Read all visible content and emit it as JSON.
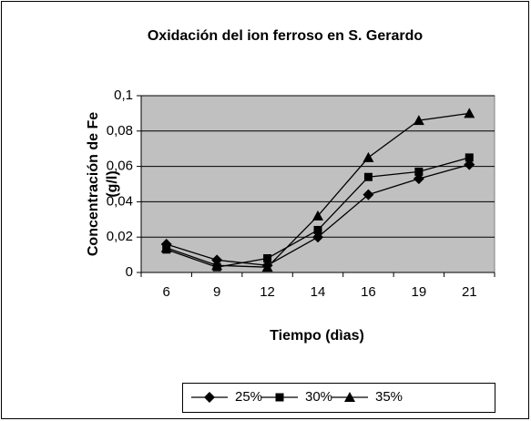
{
  "chart_data": {
    "type": "line",
    "title": "Oxidación del ion ferroso en S. Gerardo",
    "x_label": "Tiempo (dìas)",
    "y_label": [
      "Concentración de Fe",
      "(g/l)"
    ],
    "categories": [
      "6",
      "9",
      "12",
      "14",
      "16",
      "19",
      "21"
    ],
    "series": [
      {
        "name": "25%",
        "color": "#000000",
        "marker": "diamond",
        "values": [
          0.016,
          0.007,
          0.004,
          0.02,
          0.044,
          0.053,
          0.061
        ]
      },
      {
        "name": "30%",
        "color": "#000000",
        "marker": "square",
        "values": [
          0.013,
          0.003,
          0.008,
          0.024,
          0.054,
          0.057,
          0.065
        ]
      },
      {
        "name": "35%",
        "color": "#000000",
        "marker": "triangle",
        "values": [
          0.014,
          0.004,
          0.003,
          0.032,
          0.065,
          0.086,
          0.09
        ]
      }
    ],
    "ylim": [
      0,
      0.1
    ],
    "yticks": [
      0,
      {
        "value": 0.02,
        "label": "0,02"
      },
      {
        "value": 0.04,
        "label": "0,04"
      },
      {
        "value": 0.06,
        "label": "0,06"
      },
      {
        "value": 0.08,
        "label": "0,08"
      },
      {
        "value": 0.1,
        "label": "0,1"
      }
    ],
    "grid": true,
    "plot_background": "#c0c0c0",
    "legend": "bottom"
  }
}
